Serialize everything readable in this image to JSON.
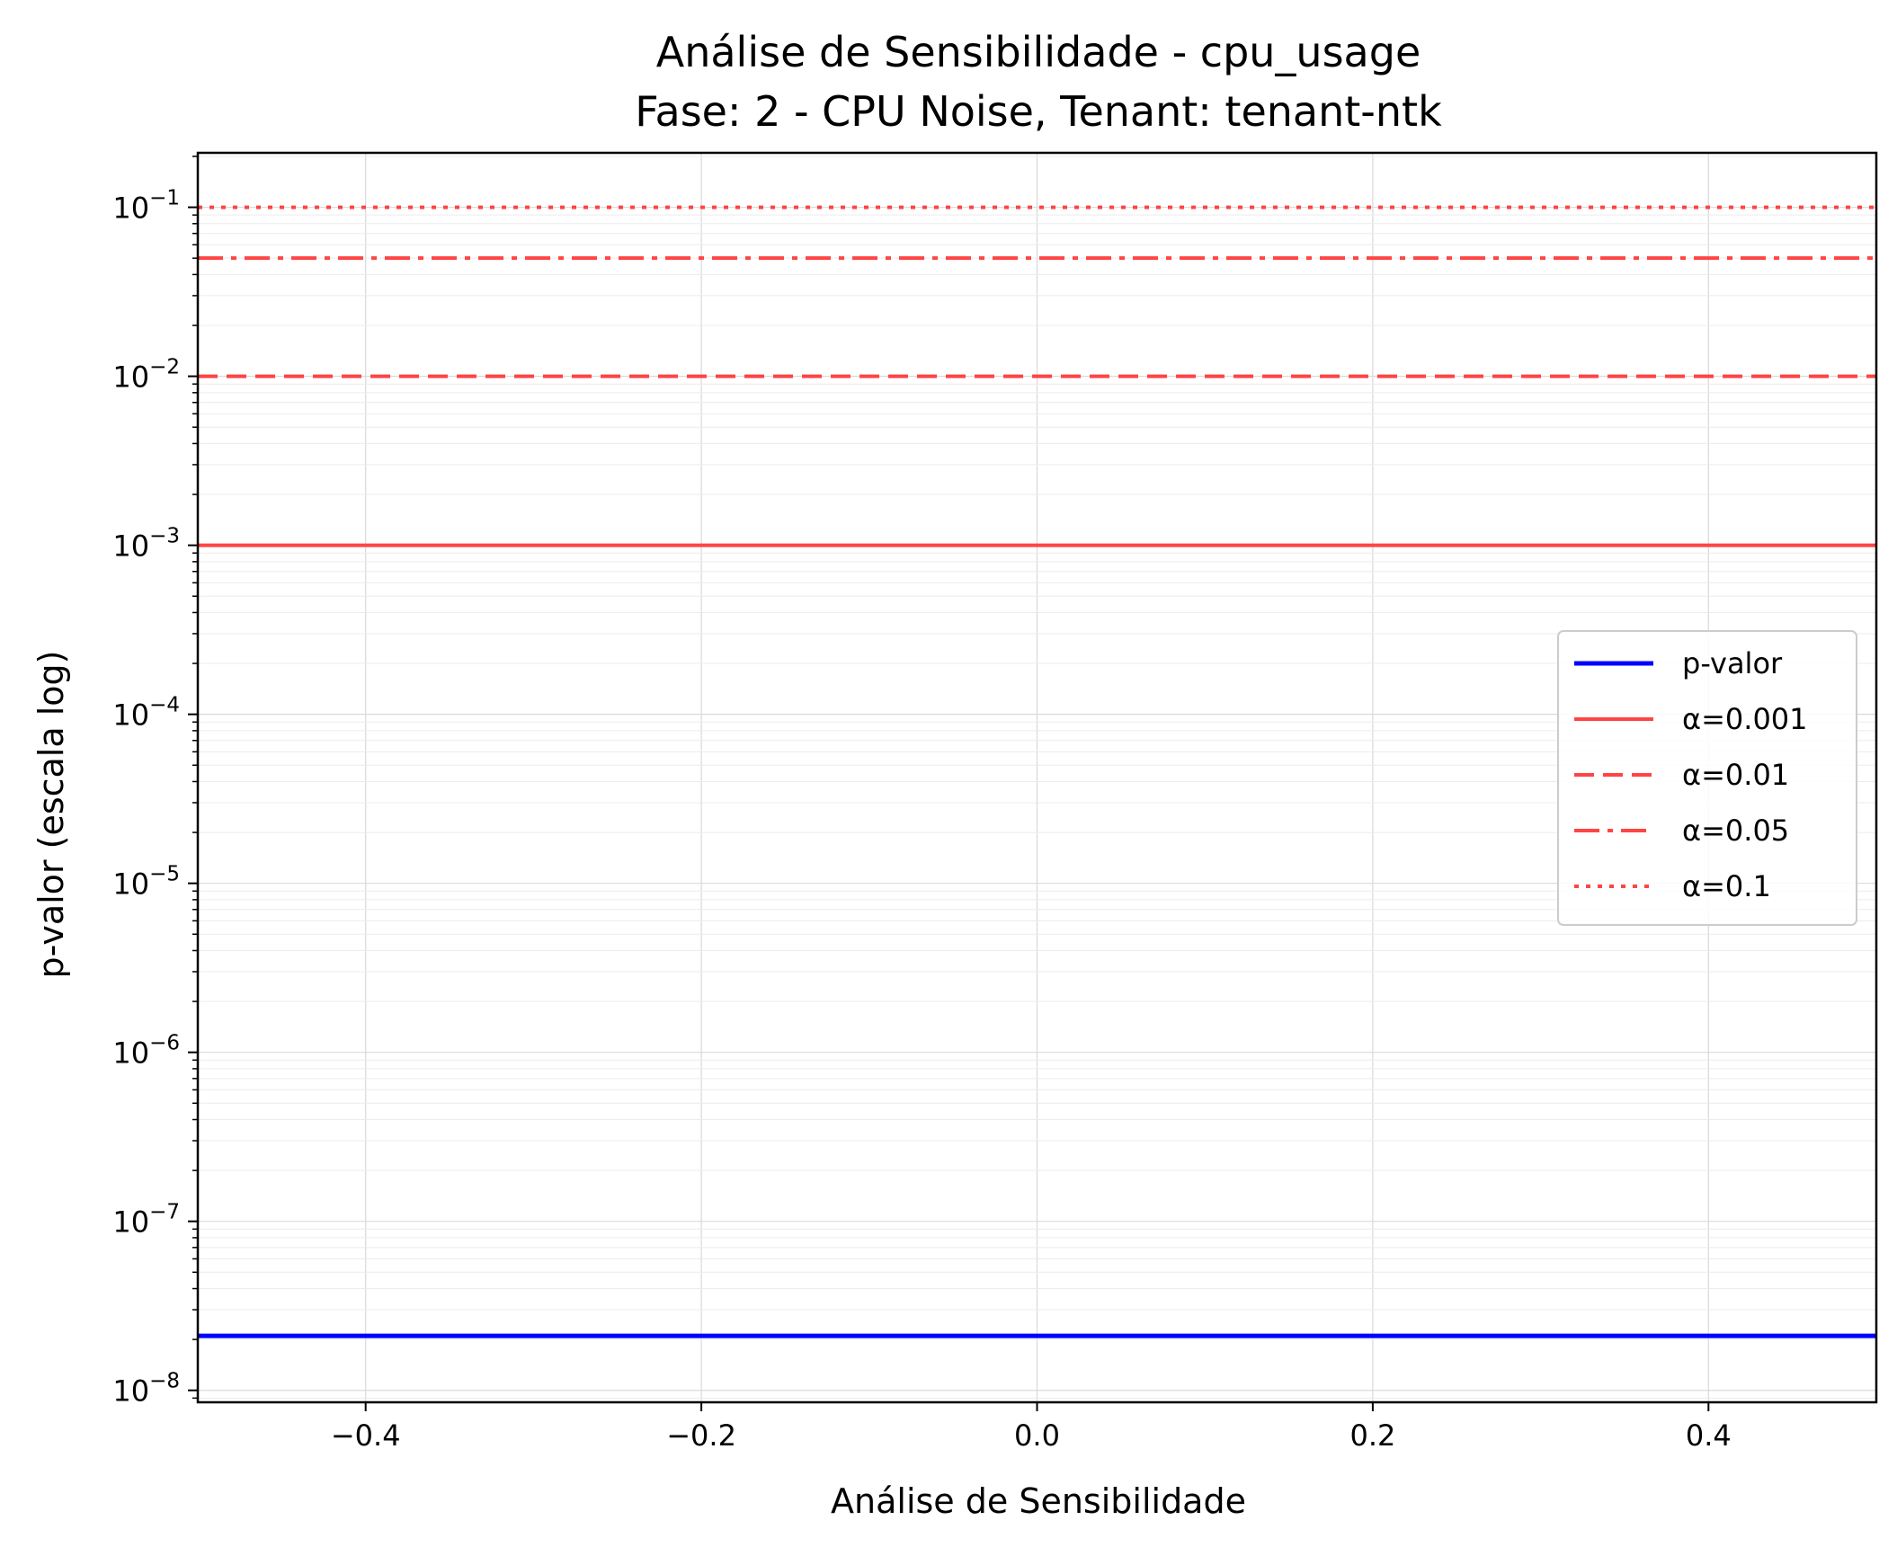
{
  "chart_data": {
    "type": "line",
    "title": "Análise de Sensibilidade - cpu_usage",
    "subtitle": "Fase: 2 - CPU Noise, Tenant: tenant-ntk",
    "xlabel": "Análise de Sensibilidade",
    "ylabel": "p-valor (escala log)",
    "xlim": [
      -0.5,
      0.5
    ],
    "ylim": [
      8.5e-09,
      0.21
    ],
    "yscale": "log",
    "grid": true,
    "legend_position": "center-right",
    "x_ticks": [
      {
        "value": -0.4,
        "label": "−0.4"
      },
      {
        "value": -0.2,
        "label": "−0.2"
      },
      {
        "value": 0.0,
        "label": "0.0"
      },
      {
        "value": 0.2,
        "label": "0.2"
      },
      {
        "value": 0.4,
        "label": "0.4"
      }
    ],
    "y_ticks": [
      {
        "exp": -8,
        "label": "10",
        "sup": "−8"
      },
      {
        "exp": -7,
        "label": "10",
        "sup": "−7"
      },
      {
        "exp": -6,
        "label": "10",
        "sup": "−6"
      },
      {
        "exp": -5,
        "label": "10",
        "sup": "−5"
      },
      {
        "exp": -4,
        "label": "10",
        "sup": "−4"
      },
      {
        "exp": -3,
        "label": "10",
        "sup": "−3"
      },
      {
        "exp": -2,
        "label": "10",
        "sup": "−2"
      },
      {
        "exp": -1,
        "label": "10",
        "sup": "−1"
      }
    ],
    "series": [
      {
        "name": "p-valor",
        "x": [
          -0.5,
          0.5
        ],
        "y": [
          2.1e-08,
          2.1e-08
        ],
        "color": "#0000ff",
        "dash": "solid",
        "width": 5
      },
      {
        "name": "α=0.001",
        "x": [
          -0.5,
          0.5
        ],
        "y": [
          0.001,
          0.001
        ],
        "color": "#ff4444",
        "dash": "solid",
        "width": 4
      },
      {
        "name": "α=0.01",
        "x": [
          -0.5,
          0.5
        ],
        "y": [
          0.01,
          0.01
        ],
        "color": "#ff4444",
        "dash": "dashed",
        "width": 4
      },
      {
        "name": "α=0.05",
        "x": [
          -0.5,
          0.5
        ],
        "y": [
          0.05,
          0.05
        ],
        "color": "#ff4444",
        "dash": "dashdot",
        "width": 4
      },
      {
        "name": "α=0.1",
        "x": [
          -0.5,
          0.5
        ],
        "y": [
          0.1,
          0.1
        ],
        "color": "#ff4444",
        "dash": "dotted",
        "width": 4
      }
    ]
  }
}
